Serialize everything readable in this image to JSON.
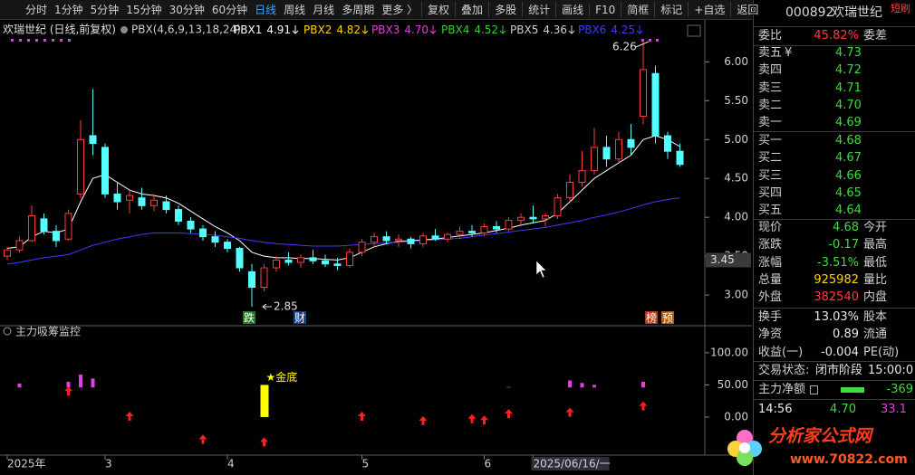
{
  "toolbar": {
    "periods": [
      "分时",
      "1分钟",
      "5分钟",
      "15分钟",
      "30分钟",
      "60分钟",
      "日线",
      "周线",
      "月线",
      "多周期",
      "更多 〉"
    ],
    "active": "日线",
    "tools": [
      "复权",
      "叠加",
      "多股",
      "统计",
      "画线",
      "F10",
      "简框",
      "标记",
      "+自选",
      "返回"
    ]
  },
  "chart_data": [
    {
      "type": "candlestick",
      "title": "欢瑞世纪 (日线,前复权)",
      "indicator": "PBX(4,6,9,13,18,24)",
      "categories": [
        "2025年",
        null,
        null,
        null,
        null,
        null,
        null,
        null,
        "3",
        null,
        null,
        null,
        null,
        null,
        null,
        null,
        null,
        null,
        "4",
        null,
        null,
        null,
        null,
        null,
        null,
        null,
        null,
        null,
        null,
        "5",
        null,
        null,
        null,
        null,
        null,
        null,
        null,
        null,
        null,
        "6",
        null,
        null,
        null,
        "2025/06/16/一",
        null,
        null,
        null,
        null,
        null,
        null,
        null,
        null,
        null,
        null,
        null,
        null
      ],
      "highlight": "2025/06/16/一",
      "candles": {
        "open": [
          3.5,
          3.58,
          3.7,
          3.98,
          3.82,
          3.72,
          4.3,
          5.05,
          4.9,
          4.3,
          4.22,
          4.25,
          4.15,
          4.2,
          4.1,
          3.95,
          3.85,
          3.75,
          3.68,
          3.6,
          3.3,
          3.1,
          3.35,
          3.45,
          3.42,
          3.48,
          3.44,
          3.4,
          3.38,
          3.55,
          3.68,
          3.75,
          3.7,
          3.72,
          3.66,
          3.76,
          3.72,
          3.78,
          3.82,
          3.8,
          3.88,
          3.85,
          3.96,
          4.0,
          3.98,
          4.02,
          4.25,
          4.45,
          4.6,
          4.9,
          4.75,
          5.0,
          5.3,
          5.85,
          5.05,
          4.85
        ],
        "high": [
          3.62,
          3.75,
          4.15,
          4.05,
          3.9,
          4.1,
          5.25,
          5.65,
          4.95,
          4.45,
          4.35,
          4.38,
          4.3,
          4.28,
          4.15,
          4.0,
          3.9,
          3.82,
          3.72,
          3.62,
          3.4,
          3.4,
          3.5,
          3.55,
          3.52,
          3.58,
          3.52,
          3.48,
          3.6,
          3.72,
          3.8,
          3.82,
          3.78,
          3.75,
          3.8,
          3.85,
          3.8,
          3.88,
          3.9,
          3.92,
          3.95,
          4.0,
          4.05,
          4.15,
          4.05,
          4.3,
          4.55,
          4.85,
          5.15,
          5.05,
          5.1,
          5.2,
          6.26,
          5.95,
          5.1,
          4.95
        ],
        "low": [
          3.45,
          3.55,
          3.68,
          3.78,
          3.62,
          3.7,
          4.25,
          4.8,
          4.25,
          4.1,
          4.05,
          4.1,
          4.08,
          4.05,
          3.9,
          3.8,
          3.7,
          3.62,
          3.55,
          3.3,
          2.85,
          3.05,
          3.3,
          3.38,
          3.35,
          3.4,
          3.36,
          3.32,
          3.35,
          3.5,
          3.62,
          3.65,
          3.62,
          3.6,
          3.62,
          3.7,
          3.68,
          3.72,
          3.75,
          3.76,
          3.8,
          3.82,
          3.88,
          3.92,
          3.88,
          3.98,
          4.2,
          4.4,
          4.55,
          4.65,
          4.7,
          4.8,
          5.2,
          4.95,
          4.75,
          4.65
        ],
        "close": [
          3.58,
          3.7,
          4.02,
          3.82,
          3.7,
          4.05,
          5.0,
          4.95,
          4.3,
          4.2,
          4.28,
          4.15,
          4.22,
          4.1,
          3.95,
          3.85,
          3.75,
          3.68,
          3.6,
          3.35,
          3.1,
          3.35,
          3.45,
          3.42,
          3.48,
          3.44,
          3.4,
          3.38,
          3.55,
          3.68,
          3.75,
          3.7,
          3.72,
          3.66,
          3.76,
          3.72,
          3.78,
          3.82,
          3.8,
          3.88,
          3.85,
          3.96,
          4.0,
          3.98,
          4.02,
          4.25,
          4.45,
          4.6,
          4.9,
          4.75,
          5.0,
          4.9,
          5.9,
          5.05,
          4.85,
          4.68
        ]
      },
      "up_color": "#ff3c3c",
      "down_color": "#54ffff",
      "series": [
        {
          "name": "PBX1",
          "color": "#ffffff",
          "last": 4.91,
          "values": [
            3.6,
            3.62,
            3.75,
            3.82,
            3.8,
            3.85,
            4.2,
            4.5,
            4.55,
            4.45,
            4.35,
            4.3,
            4.28,
            4.25,
            4.18,
            4.08,
            3.98,
            3.88,
            3.8,
            3.7,
            3.55,
            3.5,
            3.48,
            3.48,
            3.47,
            3.47,
            3.46,
            3.45,
            3.48,
            3.55,
            3.62,
            3.66,
            3.69,
            3.7,
            3.71,
            3.72,
            3.74,
            3.76,
            3.78,
            3.8,
            3.83,
            3.86,
            3.9,
            3.93,
            3.96,
            4.05,
            4.2,
            4.35,
            4.5,
            4.6,
            4.7,
            4.8,
            5.0,
            5.05,
            5.0,
            4.91
          ]
        },
        {
          "name": "PBX2",
          "color": "#ffd700",
          "last": 4.82
        },
        {
          "name": "PBX3",
          "color": "#e040e0",
          "last": 4.7,
          "last_label": "4.70"
        },
        {
          "name": "PBX4",
          "color": "#3cc83c",
          "last": 4.52
        },
        {
          "name": "PBX5",
          "color": "#d0d0d0",
          "last": 4.36
        },
        {
          "name": "PBX6",
          "color": "#3c3cff",
          "last": 4.25,
          "values": [
            3.4,
            3.42,
            3.45,
            3.48,
            3.5,
            3.52,
            3.58,
            3.64,
            3.68,
            3.72,
            3.75,
            3.78,
            3.8,
            3.8,
            3.8,
            3.79,
            3.78,
            3.77,
            3.75,
            3.73,
            3.7,
            3.68,
            3.66,
            3.65,
            3.64,
            3.63,
            3.63,
            3.63,
            3.64,
            3.65,
            3.66,
            3.67,
            3.68,
            3.69,
            3.7,
            3.71,
            3.72,
            3.73,
            3.75,
            3.77,
            3.79,
            3.81,
            3.83,
            3.85,
            3.87,
            3.9,
            3.93,
            3.96,
            4.0,
            4.03,
            4.07,
            4.11,
            4.16,
            4.2,
            4.23,
            4.25
          ]
        }
      ],
      "ylim": [
        2.78,
        6.33
      ],
      "yticks": [
        {
          "value": 3,
          "label": "3.00"
        },
        {
          "value": 3.5,
          "label": "3.50"
        },
        {
          "value": 4,
          "label": "4.00"
        },
        {
          "value": 4.5,
          "label": "4.50"
        },
        {
          "value": 5,
          "label": "5.00"
        },
        {
          "value": 5.5,
          "label": "5.50"
        },
        {
          "value": 6,
          "label": "6.00"
        }
      ],
      "cursor": {
        "value": 3.45,
        "label": "3.45"
      },
      "high_label": 6.26,
      "low_label": 2.85,
      "tags": [
        {
          "text": "跌",
          "color": "#1f7a1f"
        },
        {
          "text": "财",
          "color": "#1c3f8a"
        },
        {
          "text": "榜",
          "color": "#b03a1a"
        },
        {
          "text": "预",
          "color": "#b05a10"
        }
      ]
    },
    {
      "type": "signal",
      "title": "主力吸筹监控",
      "ylim": [
        -55,
        121
      ],
      "yticks": [
        {
          "value": 0,
          "label": "0.00"
        },
        {
          "value": 50,
          "label": "50.00"
        },
        {
          "value": 100,
          "label": "100.00"
        }
      ],
      "bars": {
        "color": "#e040e0",
        "base": 46,
        "values": [
          null,
          52,
          null,
          null,
          null,
          55,
          66,
          60,
          null,
          null,
          null,
          null,
          null,
          null,
          null,
          null,
          null,
          null,
          null,
          null,
          null,
          null,
          null,
          null,
          null,
          null,
          null,
          null,
          null,
          null,
          null,
          null,
          null,
          null,
          null,
          null,
          null,
          null,
          null,
          null,
          null,
          47,
          null,
          null,
          null,
          null,
          57,
          53,
          50,
          null,
          null,
          null,
          55,
          null,
          null,
          null
        ]
      },
      "signal": {
        "label": "★金底",
        "color": "#ffff00",
        "values": [
          null,
          null,
          null,
          null,
          null,
          null,
          null,
          null,
          null,
          null,
          null,
          null,
          null,
          null,
          null,
          null,
          null,
          null,
          null,
          null,
          null,
          50,
          null,
          null,
          null,
          null,
          null,
          null,
          null,
          null,
          null,
          null,
          null,
          null,
          null,
          null,
          null,
          null,
          null,
          null,
          null,
          null,
          null,
          null,
          null,
          null,
          null,
          null,
          null,
          null,
          null,
          null,
          null,
          null,
          null,
          null
        ]
      },
      "arrows": {
        "color": "#ff2020",
        "values": [
          null,
          null,
          null,
          null,
          null,
          39,
          null,
          null,
          null,
          null,
          0,
          null,
          null,
          null,
          null,
          null,
          -36,
          null,
          null,
          null,
          null,
          -40,
          null,
          null,
          null,
          null,
          null,
          null,
          null,
          0,
          null,
          null,
          null,
          null,
          -7,
          null,
          null,
          null,
          -4,
          -6,
          null,
          4,
          null,
          null,
          null,
          null,
          6,
          null,
          null,
          null,
          null,
          null,
          16,
          null,
          null,
          null
        ]
      }
    }
  ],
  "quote_panel": {
    "code": "000892",
    "name": "欢瑞世纪",
    "badge": "短刷",
    "ratio": {
      "label": "委比",
      "value": "45.82%",
      "side": "委差",
      "color": "#ff3c3c"
    },
    "currency": "¥",
    "asks": [
      {
        "label": "卖五",
        "price": "4.73"
      },
      {
        "label": "卖四",
        "price": "4.72"
      },
      {
        "label": "卖三",
        "price": "4.71"
      },
      {
        "label": "卖二",
        "price": "4.70"
      },
      {
        "label": "卖一",
        "price": "4.69"
      }
    ],
    "bids": [
      {
        "label": "买一",
        "price": "4.68"
      },
      {
        "label": "买二",
        "price": "4.67"
      },
      {
        "label": "买三",
        "price": "4.66"
      },
      {
        "label": "买四",
        "price": "4.65"
      },
      {
        "label": "买五",
        "price": "4.64"
      }
    ],
    "book_color": "#3cdc3c",
    "stats": [
      {
        "label": "现价",
        "value": "4.68",
        "side": "今开",
        "color": "#3cdc3c"
      },
      {
        "label": "涨跌",
        "value": "-0.17",
        "side": "最高",
        "color": "#3cdc3c"
      },
      {
        "label": "涨幅",
        "value": "-3.51%",
        "side": "最低",
        "color": "#3cdc3c"
      },
      {
        "label": "总量",
        "value": "925982",
        "side": "量比",
        "color": "#ffd700"
      },
      {
        "label": "外盘",
        "value": "382540",
        "side": "内盘",
        "color": "#ff3c3c"
      }
    ],
    "finance": [
      {
        "label": "换手",
        "value": "13.03%",
        "side": "股本",
        "color": "#e8e8e8"
      },
      {
        "label": "净资",
        "value": "0.89",
        "side": "流通",
        "color": "#e8e8e8"
      },
      {
        "label": "收益(一)",
        "value": "-0.004",
        "side": "PE(动)",
        "color": "#e8e8e8"
      }
    ],
    "status": {
      "label": "交易状态:",
      "value": "闭市阶段",
      "time": "15:00:0"
    },
    "net": {
      "label": "主力净额",
      "value": "-369",
      "color": "#3cdc3c"
    },
    "ticks": [
      {
        "time": "14:56",
        "price": "4.70",
        "volume": "33.1"
      }
    ]
  },
  "watermark": {
    "title": "分析家公式网",
    "url": "www.70822.com"
  }
}
